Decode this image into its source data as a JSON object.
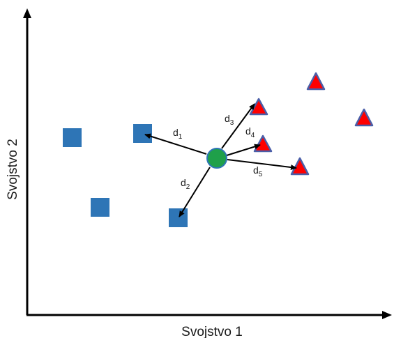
{
  "diagram": {
    "axis_titles": {
      "x": "Svojstvo 1",
      "y": "Svojstvo 2"
    },
    "colors": {
      "square": "#2e75b6",
      "triangle_fill": "#ff0000",
      "triangle_stroke": "#4a5ea8",
      "query_point": "#1fa04a",
      "query_point_stroke": "#2e75b6",
      "arrow": "#000000",
      "axis": "#000000"
    },
    "distances": [
      {
        "base": "d",
        "sub": "1"
      },
      {
        "base": "d",
        "sub": "2"
      },
      {
        "base": "d",
        "sub": "3"
      },
      {
        "base": "d",
        "sub": "4"
      },
      {
        "base": "d",
        "sub": "5"
      }
    ]
  }
}
